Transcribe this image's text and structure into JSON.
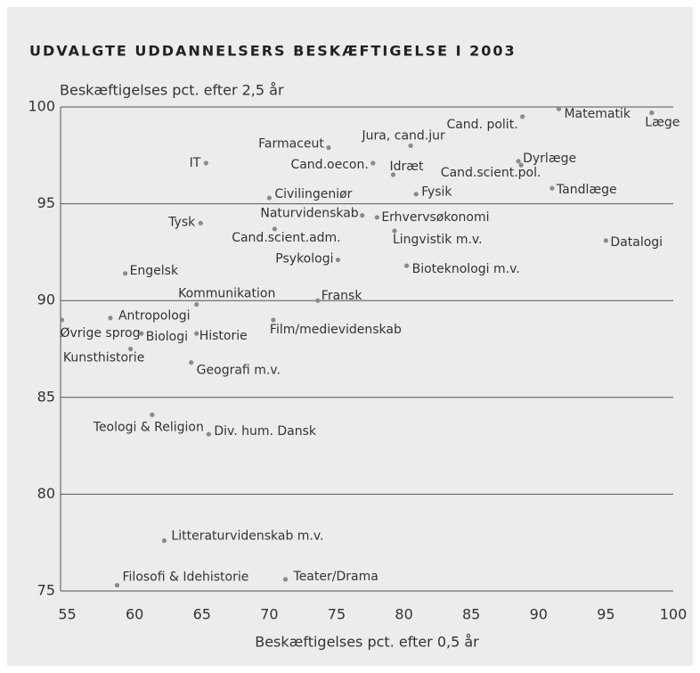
{
  "chart_data": {
    "type": "scatter",
    "title": "UDVALGTE UDDANNELSERS BESKÆFTIGELSE I 2003",
    "ylabel": "Beskæftigelses pct. efter 2,5 år",
    "xlabel": "Beskæftigelses pct. efter 0,5 år",
    "labels": [
      "Cand. polit.",
      "Matematik",
      "Læge",
      "Farmaceut",
      "Jura, cand.jur",
      "IT",
      "Cand.oecon.",
      "Idræt",
      "Dyrlæge",
      "Cand.scient.pol.",
      "Tandlæge",
      "Fysik",
      "Civilingeniør",
      "Naturvidenskab",
      "Erhvervsøkonomi",
      "Tysk",
      "Cand.scient.adm.",
      "Lingvistik m.v.",
      "Datalogi",
      "Psykologi",
      "Bioteknologi m.v.",
      "Engelsk",
      "Kommunikation",
      "Fransk",
      "Øvrige sprog",
      "Antropologi",
      "Film/medievidenskab",
      "Biologi",
      "Historie",
      "Kunsthistorie",
      "Geografi m.v.",
      "Teologi & Religion",
      "Div. hum. Dansk",
      "Litteraturvidenskab m.v.",
      "Filosofi & Idehistorie",
      "Teater/Drama"
    ],
    "x": [
      88.8,
      91.5,
      98.4,
      74.4,
      80.5,
      65.3,
      77.7,
      79.2,
      88.5,
      88.7,
      91.0,
      80.9,
      70.0,
      76.9,
      78.0,
      64.9,
      70.4,
      79.3,
      95.0,
      75.1,
      80.2,
      59.3,
      64.6,
      73.6,
      54.6,
      58.2,
      70.3,
      60.5,
      64.6,
      59.7,
      64.2,
      61.3,
      65.5,
      62.2,
      58.7,
      71.2
    ],
    "y": [
      99.5,
      99.9,
      99.7,
      97.9,
      98.0,
      97.1,
      97.1,
      96.5,
      97.2,
      97.0,
      95.8,
      95.5,
      95.3,
      94.4,
      94.3,
      94.0,
      93.7,
      93.6,
      93.1,
      92.1,
      91.8,
      91.4,
      89.8,
      90.0,
      89.0,
      89.1,
      89.0,
      88.3,
      88.3,
      87.5,
      86.8,
      84.1,
      83.1,
      77.6,
      75.3,
      75.6
    ],
    "color": "#8a8a8a",
    "xlim": [
      54.5,
      100
    ],
    "xticks": [
      55,
      60,
      65,
      70,
      75,
      80,
      85,
      90,
      95,
      100
    ],
    "ylim": [
      75,
      100
    ],
    "yticks": [
      75,
      80,
      85,
      90,
      95,
      100
    ],
    "grid": true
  }
}
